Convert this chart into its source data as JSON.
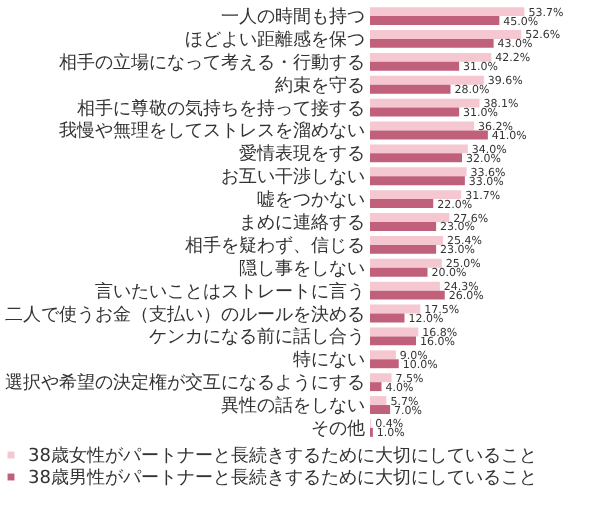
{
  "chart_data": {
    "type": "bar",
    "orientation": "horizontal",
    "legend": "bottom",
    "grid": false,
    "categories": [
      "一人の時間も持つ",
      "ほどよい距離感を保つ",
      "相手の立場になって考える・行動する",
      "約束を守る",
      "相手に尊敬の気持ちを持って接する",
      "我慢や無理をしてストレスを溜めない",
      "愛情表現をする",
      "お互い干渉しない",
      "嘘をつかない",
      "まめに連絡する",
      "相手を疑わず、信じる",
      "隠し事をしない",
      "言いたいことはストレートに言う",
      "二人で使うお金（支払い）のルールを決める",
      "ケンカになる前に話し合う",
      "特にない",
      "選択や希望の決定権が交互になるようにする",
      "異性の話をしない",
      "その他"
    ],
    "series": [
      {
        "name": "38歳女性がパートナーと長続きするために大切にしていること",
        "color": "#f4c7d1",
        "values": [
          53.7,
          52.6,
          42.2,
          39.6,
          38.1,
          36.2,
          34.0,
          33.6,
          31.7,
          27.6,
          25.4,
          25.0,
          24.3,
          17.5,
          16.8,
          9.0,
          7.5,
          5.7,
          0.4
        ],
        "value_labels": [
          "53.7%",
          "52.6%",
          "42.2%",
          "39.6%",
          "38.1%",
          "36.2%",
          "34.0%",
          "33.6%",
          "31.7%",
          "27.6%",
          "25.4%",
          "25.0%",
          "24.3%",
          "17.5%",
          "16.8%",
          "9.0%",
          "7.5%",
          "5.7%",
          "0.4%"
        ]
      },
      {
        "name": "38歳男性がパートナーと長続きするために大切にしていること",
        "color": "#c0607b",
        "values": [
          45.0,
          43.0,
          31.0,
          28.0,
          31.0,
          41.0,
          32.0,
          33.0,
          22.0,
          23.0,
          23.0,
          20.0,
          26.0,
          12.0,
          16.0,
          10.0,
          4.0,
          7.0,
          1.0
        ],
        "value_labels": [
          "45.0%",
          "43.0%",
          "31.0%",
          "28.0%",
          "31.0%",
          "41.0%",
          "32.0%",
          "33.0%",
          "22.0%",
          "23.0%",
          "23.0%",
          "20.0%",
          "26.0%",
          "12.0%",
          "16.0%",
          "10.0%",
          "4.0%",
          "7.0%",
          "1.0%"
        ]
      }
    ]
  }
}
